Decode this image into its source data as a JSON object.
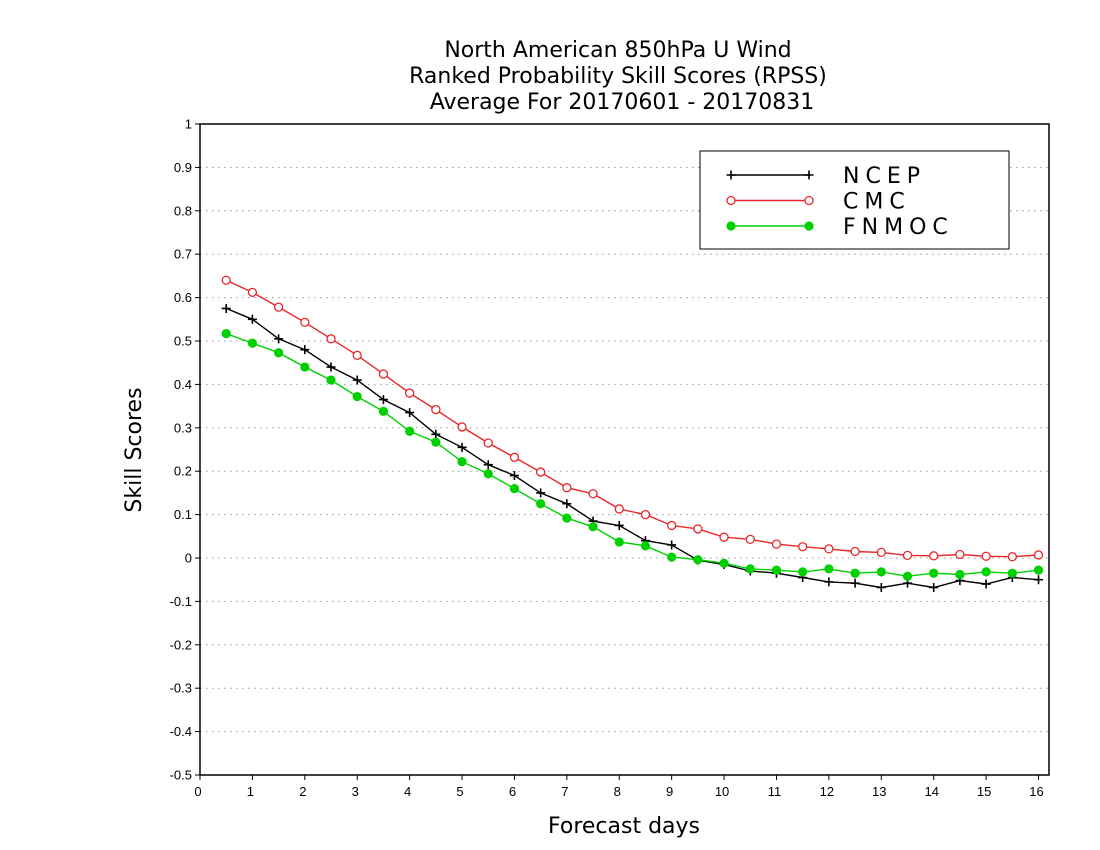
{
  "chart_data": {
    "type": "line",
    "title": [
      "North American 850hPa U Wind",
      "Ranked Probability Skill Scores (RPSS)",
      "Average For 20170601 - 20170831"
    ],
    "xlabel": "Forecast days",
    "ylabel": "Skill Scores",
    "xlim": [
      0,
      16.2
    ],
    "ylim": [
      -0.5,
      1
    ],
    "xticks": [
      0,
      1,
      2,
      3,
      4,
      5,
      6,
      7,
      8,
      9,
      10,
      11,
      12,
      13,
      14,
      15,
      16
    ],
    "xtick_labels": [
      "0",
      "1",
      "2",
      "3",
      "4",
      "5",
      "6",
      "7",
      "8",
      "9",
      "10",
      "11",
      "12",
      "13",
      "14",
      "15",
      "16"
    ],
    "yticks": [
      -0.5,
      -0.4,
      -0.3,
      -0.2,
      -0.1,
      0,
      0.1,
      0.2,
      0.3,
      0.4,
      0.5,
      0.6,
      0.7,
      0.8,
      0.9,
      1
    ],
    "ytick_labels": [
      "-0.5",
      "-0.4",
      "-0.3",
      "-0.2",
      "-0.1",
      "0",
      "0.1",
      "0.2",
      "0.3",
      "0.4",
      "0.5",
      "0.6",
      "0.7",
      "0.8",
      "0.9",
      "1"
    ],
    "grid": true,
    "legend_position": "top-right",
    "x": [
      0.5,
      1,
      1.5,
      2,
      2.5,
      3,
      3.5,
      4,
      4.5,
      5,
      5.5,
      6,
      6.5,
      7,
      7.5,
      8,
      8.5,
      9,
      9.5,
      10,
      10.5,
      11,
      11.5,
      12,
      12.5,
      13,
      13.5,
      14,
      14.5,
      15,
      15.5,
      16
    ],
    "series": [
      {
        "name": "NCEP",
        "color": "#000000",
        "marker": "plus",
        "values": [
          0.575,
          0.55,
          0.505,
          0.48,
          0.44,
          0.41,
          0.365,
          0.335,
          0.285,
          0.255,
          0.215,
          0.19,
          0.15,
          0.125,
          0.085,
          0.075,
          0.04,
          0.03,
          -0.005,
          -0.015,
          -0.03,
          -0.035,
          -0.045,
          -0.055,
          -0.058,
          -0.068,
          -0.058,
          -0.068,
          -0.052,
          -0.06,
          -0.045,
          -0.05
        ]
      },
      {
        "name": "CMC",
        "color": "#e8272a",
        "marker": "open-circle",
        "values": [
          0.64,
          0.612,
          0.578,
          0.543,
          0.505,
          0.467,
          0.424,
          0.38,
          0.342,
          0.302,
          0.265,
          0.232,
          0.198,
          0.162,
          0.148,
          0.113,
          0.1,
          0.075,
          0.067,
          0.048,
          0.043,
          0.032,
          0.026,
          0.021,
          0.015,
          0.013,
          0.006,
          0.005,
          0.008,
          0.004,
          0.003,
          0.007
        ]
      },
      {
        "name": "FNMOC",
        "color": "#00d000",
        "marker": "filled-circle",
        "values": [
          0.517,
          0.495,
          0.473,
          0.44,
          0.41,
          0.372,
          0.338,
          0.292,
          0.267,
          0.222,
          0.194,
          0.16,
          0.125,
          0.092,
          0.072,
          0.037,
          0.028,
          0.002,
          -0.004,
          -0.012,
          -0.025,
          -0.028,
          -0.032,
          -0.025,
          -0.035,
          -0.032,
          -0.042,
          -0.035,
          -0.038,
          -0.032,
          -0.035,
          -0.028
        ]
      }
    ]
  }
}
